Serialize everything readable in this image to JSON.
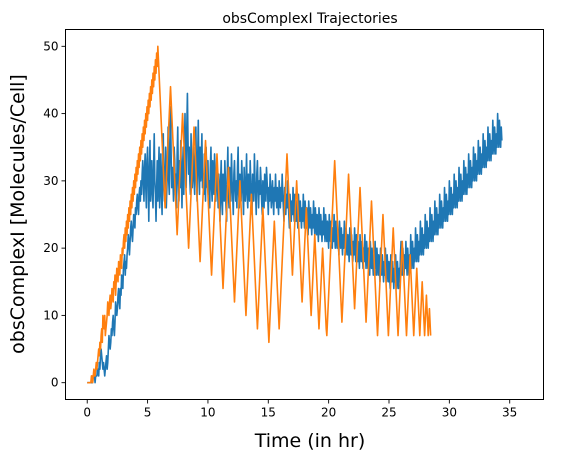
{
  "chart_data": {
    "type": "line",
    "title": "obsComplexI Trajectories",
    "xlabel": "Time (in hr)",
    "ylabel": "obsComplexI [Molecules/Cell]",
    "xlim": [
      -1.8,
      37.8
    ],
    "ylim": [
      -2.5,
      52.5
    ],
    "x_ticks": [
      0,
      5,
      10,
      15,
      20,
      25,
      30,
      35
    ],
    "y_ticks": [
      0,
      10,
      20,
      30,
      40,
      50
    ],
    "grid": false,
    "legend": "none",
    "x_step": 0.05,
    "series": [
      {
        "color": "#1f77b4",
        "x_start": 0,
        "values": [
          0,
          0,
          0,
          0,
          0,
          0,
          0,
          0,
          0,
          0,
          1,
          1,
          1,
          0,
          1,
          1,
          1,
          2,
          2,
          1,
          3,
          2,
          4,
          5,
          4,
          3,
          2,
          3,
          2,
          1,
          2,
          3,
          4,
          2,
          3,
          5,
          7,
          6,
          5,
          6,
          8,
          7,
          9,
          10,
          8,
          7,
          9,
          12,
          11,
          10,
          11,
          13,
          14,
          12,
          11,
          14,
          13,
          16,
          15,
          14,
          17,
          18,
          19,
          16,
          18,
          17,
          19,
          20,
          22,
          21,
          19,
          21,
          23,
          24,
          22,
          21,
          23,
          25,
          24,
          23,
          26,
          25,
          27,
          28,
          26,
          25,
          28,
          29,
          27,
          30,
          28,
          31,
          33,
          30,
          27,
          32,
          34,
          29,
          26,
          33,
          35,
          30,
          24,
          31,
          36,
          27,
          30,
          33,
          28,
          26,
          32,
          37,
          30,
          28,
          24,
          29,
          33,
          27,
          31,
          35,
          26,
          30,
          34,
          28,
          25,
          32,
          37,
          29,
          27,
          31,
          35,
          26,
          29,
          33,
          38,
          30,
          28,
          36,
          41,
          34,
          29,
          32,
          30,
          27,
          35,
          33,
          28,
          31,
          26,
          34,
          38,
          30,
          27,
          33,
          29,
          36,
          31,
          26,
          32,
          35,
          28,
          34,
          40,
          33,
          29,
          38,
          43,
          36,
          31,
          35,
          30,
          28,
          37,
          33,
          29,
          32,
          35,
          30,
          28,
          34,
          38,
          31,
          27,
          33,
          39,
          32,
          28,
          35,
          30,
          33,
          37,
          29,
          31,
          28,
          34,
          30,
          27,
          35,
          31,
          29,
          33,
          28,
          30,
          26,
          32,
          35,
          29,
          27,
          33,
          30,
          28,
          34,
          31,
          27,
          30,
          33,
          29,
          26,
          31,
          28,
          24,
          30,
          33,
          27,
          25,
          31,
          29,
          27,
          33,
          30,
          26,
          24,
          31,
          35,
          28,
          26,
          32,
          29,
          27,
          34,
          30,
          28,
          25,
          31,
          33,
          29,
          27,
          30,
          26,
          32,
          35,
          28,
          26,
          31,
          29,
          27,
          33,
          30,
          28,
          25,
          32,
          29,
          27,
          30,
          34,
          28,
          26,
          31,
          29,
          27,
          33,
          30,
          28,
          25,
          31,
          29,
          27,
          34,
          30,
          28,
          25,
          31,
          33,
          29,
          26,
          30,
          28,
          32,
          30,
          27,
          25,
          30,
          28,
          26,
          31,
          29,
          27,
          32,
          30,
          28,
          25,
          29,
          27,
          31,
          29,
          26,
          28,
          30,
          27,
          25,
          29,
          27,
          31,
          28,
          26,
          29,
          27,
          25,
          30,
          28,
          26,
          29,
          27,
          31,
          28,
          26,
          24,
          29,
          27,
          25,
          28,
          26,
          30,
          27,
          25,
          23,
          28,
          26,
          24,
          27,
          25,
          29,
          26,
          24,
          28,
          26,
          24,
          27,
          25,
          23,
          28,
          26,
          24,
          27,
          25,
          23,
          26,
          24,
          28,
          25,
          23,
          27,
          25,
          23,
          26,
          24,
          22,
          27,
          25,
          23,
          26,
          24,
          22,
          25,
          23,
          27,
          24,
          22,
          26,
          24,
          22,
          25,
          23,
          21,
          26,
          24,
          22,
          25,
          23,
          21,
          24,
          22,
          26,
          23,
          21,
          25,
          23,
          21,
          24,
          22,
          20,
          25,
          23,
          21,
          24,
          22,
          20,
          23,
          21,
          25,
          22,
          20,
          24,
          22,
          20,
          23,
          21,
          19,
          24,
          22,
          20,
          23,
          21,
          19,
          22,
          20,
          24,
          21,
          19,
          23,
          21,
          19,
          22,
          20,
          18,
          23,
          21,
          19,
          22,
          20,
          18,
          21,
          19,
          23,
          20,
          18,
          22,
          20,
          18,
          21,
          19,
          17,
          22,
          20,
          18,
          21,
          19,
          17,
          20,
          18,
          22,
          19,
          17,
          21,
          19,
          17,
          20,
          18,
          16,
          21,
          19,
          17,
          20,
          18,
          16,
          19,
          17,
          21,
          18,
          16,
          20,
          18,
          16,
          19,
          17,
          15,
          20,
          18,
          16,
          19,
          17,
          15,
          18,
          16,
          20,
          17,
          15,
          19,
          17,
          15,
          18,
          16,
          14,
          19,
          17,
          15,
          18,
          16,
          14,
          17,
          15,
          19,
          16,
          14,
          18,
          16,
          14,
          17,
          15,
          19,
          21,
          18,
          16,
          20,
          18,
          16,
          19,
          17,
          21,
          18,
          16,
          20,
          18,
          16,
          19,
          17,
          22,
          19,
          17,
          21,
          19,
          17,
          20,
          18,
          23,
          20,
          18,
          22,
          20,
          18,
          21,
          19,
          24,
          21,
          19,
          23,
          21,
          19,
          22,
          20,
          25,
          22,
          20,
          24,
          22,
          20,
          23,
          21,
          26,
          23,
          21,
          25,
          23,
          21,
          24,
          22,
          27,
          24,
          22,
          26,
          24,
          22,
          25,
          23,
          28,
          25,
          23,
          27,
          25,
          23,
          26,
          24,
          29,
          26,
          24,
          28,
          26,
          24,
          27,
          25,
          30,
          27,
          25,
          29,
          27,
          25,
          28,
          26,
          31,
          28,
          26,
          30,
          28,
          26,
          29,
          27,
          32,
          29,
          27,
          31,
          29,
          27,
          30,
          28,
          33,
          30,
          28,
          32,
          30,
          28,
          31,
          29,
          34,
          31,
          29,
          33,
          31,
          29,
          32,
          30,
          35,
          32,
          30,
          34,
          32,
          30,
          33,
          31,
          36,
          33,
          31,
          35,
          33,
          31,
          34,
          32,
          37,
          34,
          32,
          36,
          34,
          32,
          35,
          33,
          38,
          35,
          33,
          37,
          35,
          33,
          36,
          34,
          39,
          36,
          34,
          38,
          36,
          34,
          37,
          35,
          40,
          37,
          35,
          39,
          37,
          35,
          38,
          36
        ]
      },
      {
        "color": "#ff7f0e",
        "x_start": 0,
        "values": [
          0,
          0,
          0,
          0,
          0,
          0,
          0,
          1,
          1,
          0,
          1,
          2,
          1,
          1,
          2,
          3,
          2,
          3,
          4,
          5,
          4,
          6,
          5,
          7,
          8,
          6,
          10,
          9,
          8,
          10,
          7,
          8,
          9,
          10,
          12,
          11,
          10,
          12,
          13,
          11,
          12,
          14,
          13,
          12,
          15,
          14,
          16,
          13,
          15,
          17,
          16,
          15,
          18,
          17,
          16,
          19,
          18,
          17,
          20,
          19,
          21,
          22,
          20,
          23,
          21,
          24,
          22,
          25,
          23,
          26,
          24,
          27,
          25,
          28,
          26,
          29,
          27,
          30,
          28,
          31,
          29,
          32,
          30,
          33,
          31,
          34,
          32,
          35,
          33,
          36,
          34,
          37,
          35,
          38,
          36,
          39,
          37,
          40,
          38,
          41,
          39,
          42,
          40,
          43,
          41,
          44,
          42,
          45,
          43,
          46,
          44,
          47,
          45,
          48,
          46,
          49,
          47,
          50,
          48,
          46,
          44,
          42,
          40,
          38,
          36,
          34,
          32,
          30,
          28,
          26,
          28,
          30,
          32,
          34,
          36,
          38,
          40,
          42,
          44,
          42,
          40,
          38,
          36,
          34,
          32,
          30,
          28,
          26,
          24,
          22,
          24,
          26,
          28,
          30,
          32,
          34,
          36,
          38,
          40,
          38,
          36,
          34,
          32,
          30,
          28,
          26,
          24,
          22,
          20,
          22,
          24,
          26,
          28,
          30,
          32,
          34,
          36,
          38,
          36,
          34,
          32,
          30,
          28,
          26,
          24,
          22,
          20,
          18,
          20,
          22,
          24,
          26,
          28,
          30,
          32,
          34,
          36,
          34,
          32,
          30,
          28,
          26,
          24,
          22,
          20,
          18,
          16,
          18,
          20,
          22,
          24,
          26,
          28,
          30,
          32,
          34,
          32,
          30,
          28,
          26,
          24,
          22,
          20,
          18,
          16,
          14,
          16,
          18,
          20,
          22,
          24,
          26,
          28,
          30,
          32,
          30,
          28,
          26,
          24,
          22,
          20,
          18,
          16,
          14,
          12,
          14,
          16,
          18,
          20,
          22,
          24,
          26,
          28,
          30,
          28,
          26,
          24,
          22,
          20,
          18,
          16,
          14,
          12,
          10,
          12,
          14,
          16,
          18,
          20,
          22,
          24,
          26,
          28,
          26,
          24,
          22,
          20,
          18,
          16,
          14,
          12,
          10,
          8,
          10,
          12,
          14,
          16,
          18,
          20,
          22,
          24,
          26,
          24,
          22,
          20,
          18,
          16,
          14,
          12,
          10,
          8,
          6,
          8,
          10,
          12,
          14,
          16,
          18,
          20,
          22,
          24,
          22,
          20,
          18,
          16,
          14,
          12,
          10,
          8,
          10,
          12,
          14,
          16,
          18,
          20,
          22,
          24,
          26,
          28,
          30,
          32,
          34,
          32,
          30,
          28,
          26,
          24,
          22,
          20,
          18,
          16,
          18,
          20,
          22,
          24,
          26,
          28,
          30,
          28,
          26,
          24,
          22,
          20,
          18,
          16,
          14,
          12,
          14,
          16,
          18,
          20,
          22,
          24,
          26,
          24,
          22,
          20,
          18,
          16,
          14,
          12,
          10,
          12,
          14,
          16,
          18,
          20,
          22,
          20,
          18,
          16,
          14,
          12,
          10,
          8,
          10,
          12,
          14,
          16,
          18,
          20,
          18,
          16,
          14,
          12,
          10,
          8,
          7,
          9,
          11,
          13,
          15,
          17,
          19,
          21,
          23,
          25,
          27,
          29,
          31,
          33,
          31,
          29,
          27,
          25,
          23,
          21,
          19,
          17,
          15,
          13,
          11,
          9,
          11,
          13,
          15,
          17,
          19,
          21,
          23,
          25,
          27,
          29,
          31,
          29,
          27,
          25,
          23,
          21,
          19,
          17,
          15,
          13,
          11,
          13,
          15,
          17,
          19,
          21,
          23,
          25,
          27,
          29,
          27,
          25,
          23,
          21,
          19,
          17,
          15,
          13,
          11,
          9,
          11,
          13,
          15,
          17,
          19,
          21,
          23,
          25,
          27,
          25,
          23,
          21,
          19,
          17,
          15,
          13,
          11,
          9,
          7,
          9,
          11,
          13,
          15,
          17,
          19,
          21,
          23,
          25,
          23,
          21,
          19,
          17,
          15,
          13,
          11,
          9,
          7,
          9,
          11,
          13,
          15,
          17,
          19,
          21,
          23,
          21,
          19,
          17,
          15,
          13,
          11,
          9,
          7,
          9,
          11,
          13,
          15,
          17,
          19,
          21,
          19,
          17,
          15,
          13,
          11,
          9,
          7,
          9,
          11,
          13,
          15,
          17,
          19,
          17,
          15,
          13,
          11,
          9,
          7,
          9,
          11,
          13,
          15,
          17,
          15,
          13,
          11,
          9,
          7,
          9,
          11,
          13,
          15,
          13,
          11,
          9,
          7,
          9,
          11,
          13,
          11,
          9,
          7,
          9,
          11,
          9,
          7
        ]
      }
    ]
  }
}
